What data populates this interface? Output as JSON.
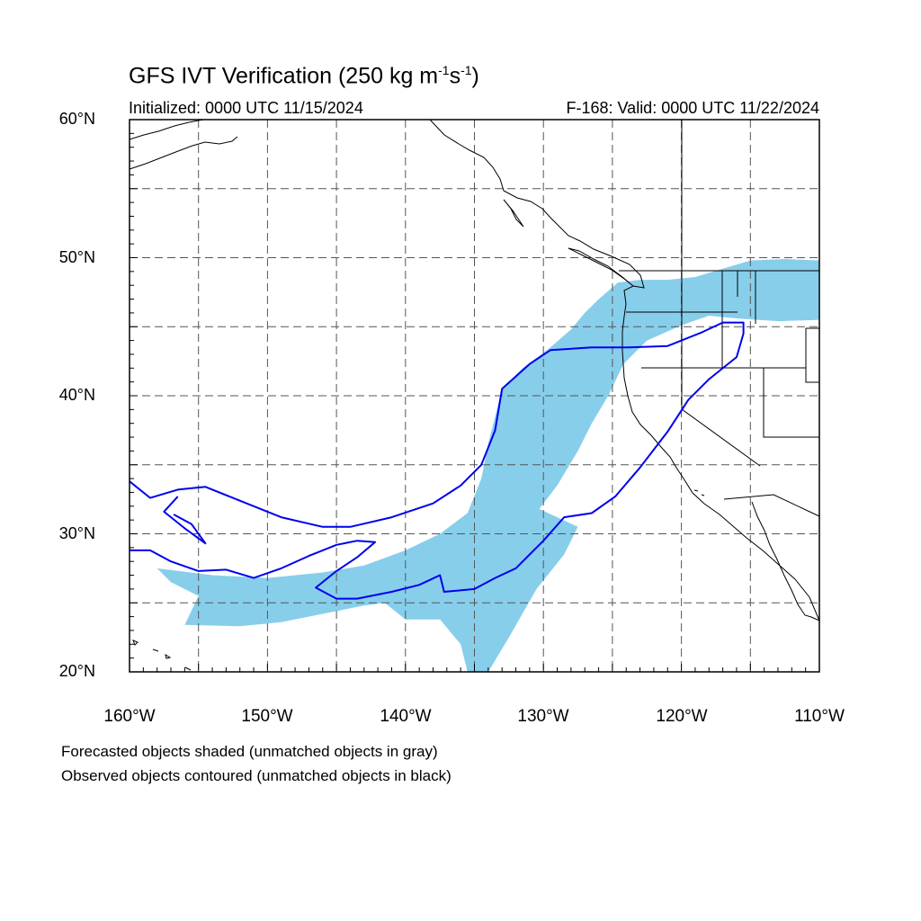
{
  "title": {
    "main": "GFS IVT Verification (250 kg m",
    "sup1": "-1",
    "mid": "s",
    "sup2": "-1",
    "end": ")"
  },
  "subtitle_left": "Initialized: 0000 UTC 11/15/2024",
  "subtitle_right": "F-168: Valid: 0000 UTC 11/22/2024",
  "lat_labels": [
    "60°N",
    "50°N",
    "40°N",
    "30°N",
    "20°N"
  ],
  "lon_labels": [
    "160°W",
    "150°W",
    "140°W",
    "130°W",
    "120°W",
    "110°W"
  ],
  "notes": [
    "Forecasted objects shaded (unmatched objects in gray)",
    "Observed objects contoured (unmatched objects in black)"
  ],
  "colors": {
    "forecast_fill": "#87CEEB",
    "observed_contour": "#0000EE",
    "coast": "#000000",
    "grid": "#555555"
  },
  "map_extent": {
    "lon_min": -160,
    "lon_max": -110,
    "lat_min": 20,
    "lat_max": 60
  },
  "grid_dashed": true,
  "forecast_objects": [
    [
      [
        -158,
        27.5
      ],
      [
        -154,
        27
      ],
      [
        -150,
        26.8
      ],
      [
        -146,
        27.2
      ],
      [
        -143,
        27.7
      ],
      [
        -140,
        28.8
      ],
      [
        -137.5,
        30
      ],
      [
        -135.5,
        31.5
      ],
      [
        -134.5,
        34
      ],
      [
        -134,
        36.5
      ],
      [
        -133.5,
        38.5
      ],
      [
        -133,
        40.5
      ],
      [
        -131.5,
        42
      ],
      [
        -129.5,
        43.5
      ],
      [
        -128,
        44.8
      ],
      [
        -127,
        46
      ],
      [
        -126,
        47
      ],
      [
        -124.6,
        48.2
      ],
      [
        -123,
        48.4
      ],
      [
        -121,
        48.4
      ],
      [
        -119,
        48.6
      ],
      [
        -117,
        49.2
      ],
      [
        -115,
        49.8
      ],
      [
        -112.5,
        49.9
      ],
      [
        -110,
        49.8
      ],
      [
        -110,
        45.5
      ],
      [
        -113,
        45.4
      ],
      [
        -116,
        45.6
      ],
      [
        -118,
        45.8
      ],
      [
        -120,
        45.1
      ],
      [
        -122.5,
        44
      ],
      [
        -124.2,
        42.3
      ],
      [
        -125.3,
        40
      ],
      [
        -126.5,
        38
      ],
      [
        -127.5,
        36
      ],
      [
        -129,
        33.5
      ],
      [
        -130.3,
        31.8
      ],
      [
        -127.5,
        30.5
      ],
      [
        -128.5,
        28.5
      ],
      [
        -130.5,
        26
      ],
      [
        -132.5,
        22.5
      ],
      [
        -134,
        20
      ],
      [
        -135.5,
        20
      ],
      [
        -136,
        22
      ],
      [
        -137.5,
        23.8
      ],
      [
        -140,
        23.8
      ],
      [
        -141.5,
        25
      ],
      [
        -143,
        24.8
      ],
      [
        -146,
        24.2
      ],
      [
        -149,
        23.6
      ],
      [
        -152,
        23.3
      ],
      [
        -156,
        23.4
      ],
      [
        -155,
        25.5
      ],
      [
        -157,
        26.5
      ]
    ]
  ],
  "observed_objects": [
    [
      [
        -160,
        33.8
      ],
      [
        -158.5,
        32.6
      ],
      [
        -156.5,
        33.2
      ],
      [
        -154.5,
        33.4
      ],
      [
        -152,
        32.4
      ],
      [
        -149,
        31.2
      ],
      [
        -146,
        30.5
      ],
      [
        -144,
        30.5
      ],
      [
        -141,
        31.2
      ],
      [
        -138,
        32.2
      ],
      [
        -136,
        33.5
      ],
      [
        -134.5,
        35
      ],
      [
        -133.5,
        37.5
      ],
      [
        -133,
        40.5
      ],
      [
        -131,
        42.3
      ],
      [
        -129.5,
        43.3
      ],
      [
        -126.5,
        43.5
      ],
      [
        -123.8,
        43.5
      ],
      [
        -121,
        43.6
      ],
      [
        -118.5,
        44.6
      ],
      [
        -117,
        45.3
      ],
      [
        -115.5,
        45.3
      ],
      [
        -115.5,
        44.5
      ],
      [
        -116,
        42.8
      ],
      [
        -118,
        41.2
      ],
      [
        -119.5,
        39.7
      ],
      [
        -121,
        37.4
      ],
      [
        -123,
        34.8
      ],
      [
        -124.8,
        32.7
      ],
      [
        -126.5,
        31.5
      ],
      [
        -128.5,
        31.2
      ],
      [
        -130,
        29.5
      ],
      [
        -131,
        28.5
      ],
      [
        -132,
        27.5
      ],
      [
        -133.5,
        26.8
      ],
      [
        -135,
        26
      ],
      [
        -137.2,
        25.8
      ],
      [
        -137.5,
        27
      ],
      [
        -139,
        26.3
      ],
      [
        -141,
        25.8
      ],
      [
        -143.5,
        25.3
      ],
      [
        -145,
        25.3
      ],
      [
        -146.5,
        26.1
      ],
      [
        -145,
        27.3
      ],
      [
        -143.5,
        28.3
      ],
      [
        -142.2,
        29.4
      ],
      [
        -143.5,
        29.5
      ],
      [
        -145,
        29.2
      ],
      [
        -147,
        28.4
      ],
      [
        -149,
        27.5
      ],
      [
        -151,
        26.8
      ],
      [
        -153,
        27.4
      ],
      [
        -155,
        27.3
      ],
      [
        -157,
        28
      ],
      [
        -158.5,
        28.8
      ],
      [
        -160,
        28.8
      ]
    ],
    [
      [
        -156.5,
        32.7
      ],
      [
        -157.5,
        31.6
      ],
      [
        -156,
        30.4
      ],
      [
        -154.5,
        29.3
      ],
      [
        -155.5,
        30.7
      ],
      [
        -156.8,
        31.4
      ]
    ]
  ]
}
